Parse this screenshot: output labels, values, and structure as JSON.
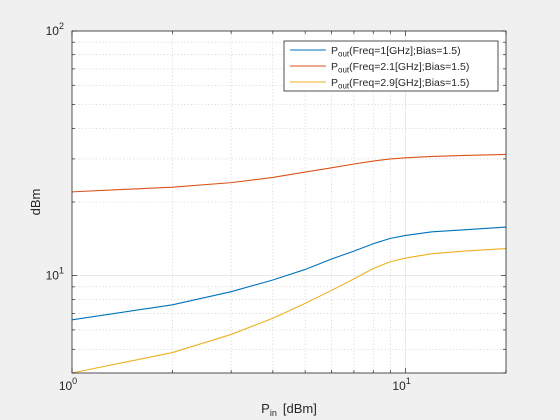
{
  "chart_data": {
    "type": "line",
    "title": "",
    "xlabel": "P",
    "xlabel_sub": "in",
    "xlabel_unit": "[dBm]",
    "ylabel": "dBm",
    "x_scale": "log",
    "y_scale": "log",
    "xlim": [
      1,
      20
    ],
    "ylim": [
      4,
      100
    ],
    "x_major_ticks": [
      {
        "value": 1,
        "base": "10",
        "exp": "0"
      },
      {
        "value": 10,
        "base": "10",
        "exp": "1"
      }
    ],
    "y_major_ticks": [
      {
        "value": 10,
        "base": "10",
        "exp": "1"
      },
      {
        "value": 100,
        "base": "10",
        "exp": "2"
      }
    ],
    "grid": true,
    "legend_position": "top-right",
    "series": [
      {
        "name_main": "P",
        "name_sub": "out",
        "name_rest": "(Freq=1[GHz];Bias=1.5)",
        "color": "#0072BD",
        "x": [
          1,
          2,
          3,
          4,
          5,
          6,
          7,
          8,
          9,
          10,
          12,
          15,
          20
        ],
        "y": [
          6.6,
          7.6,
          8.6,
          9.6,
          10.6,
          11.7,
          12.6,
          13.5,
          14.2,
          14.6,
          15.1,
          15.4,
          15.8
        ]
      },
      {
        "name_main": "P",
        "name_sub": "out",
        "name_rest": "(Freq=2.1[GHz];Bias=1.5)",
        "color": "#D95319",
        "x": [
          1,
          2,
          3,
          4,
          5,
          6,
          7,
          8,
          9,
          10,
          12,
          15,
          20
        ],
        "y": [
          22.0,
          23.0,
          24.0,
          25.2,
          26.5,
          27.6,
          28.6,
          29.4,
          30.0,
          30.3,
          30.7,
          31.0,
          31.3
        ]
      },
      {
        "name_main": "P",
        "name_sub": "out",
        "name_rest": "(Freq=2.9[GHz];Bias=1.5)",
        "color": "#EDB120",
        "x": [
          1,
          2,
          3,
          4,
          5,
          6,
          7,
          8,
          9,
          10,
          12,
          15,
          20
        ],
        "y": [
          4.0,
          4.85,
          5.75,
          6.7,
          7.7,
          8.7,
          9.7,
          10.7,
          11.4,
          11.8,
          12.3,
          12.6,
          12.9
        ]
      }
    ]
  }
}
